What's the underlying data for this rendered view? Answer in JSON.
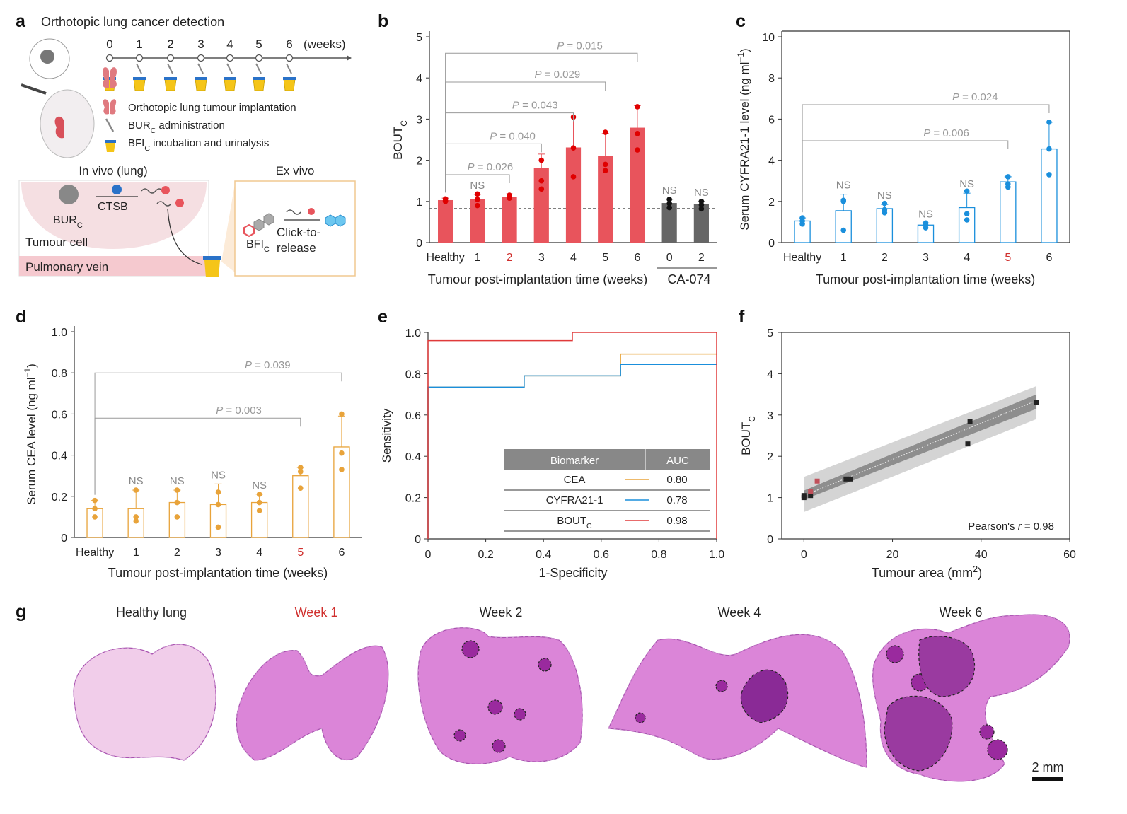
{
  "panel_letters": {
    "a": "a",
    "b": "b",
    "c": "c",
    "d": "d",
    "e": "e",
    "f": "f",
    "g": "g"
  },
  "colors": {
    "bout_red": "#e8545c",
    "ca074_grey": "#666666",
    "cyfra_blue": "#1a8fdc",
    "cea_orange": "#e8a33a",
    "roc_red": "#e03a3a",
    "table_header": "#888888",
    "pvalue_grey": "#999999",
    "highlight_red": "#d0302e"
  },
  "panel_a": {
    "title": "Orthotopic lung cancer detection",
    "weeks": [
      "0",
      "1",
      "2",
      "3",
      "4",
      "5",
      "6"
    ],
    "weeks_unit": "(weeks)",
    "legend": [
      {
        "icon": "lung-icon",
        "text_main": "Orthotopic lung tumour implantation",
        "sub": ""
      },
      {
        "icon": "syringe-icon",
        "text_main": "BUR",
        "sub": "C",
        "text_after": " administration"
      },
      {
        "icon": "urine-cup-icon",
        "text_main": "BFI",
        "sub": "C",
        "text_after": " incubation and urinalysis"
      }
    ],
    "invivo_label": "In vivo (lung)",
    "exvivo_label": "Ex vivo",
    "bur_label": "BUR",
    "bur_sub": "C",
    "ctsb_label": "CTSB",
    "tumour_cell_label": "Tumour cell",
    "vein_label": "Pulmonary vein",
    "bfi_label": "BFI",
    "bfi_sub": "C",
    "click_label_1": "Click-to-",
    "click_label_2": "release"
  },
  "chart_data": [
    {
      "panel": "b",
      "type": "bar",
      "categories": [
        "Healthy",
        "1",
        "2",
        "3",
        "4",
        "5",
        "6",
        "0",
        "2"
      ],
      "highlight_category_index": 2,
      "values": [
        1.02,
        1.05,
        1.1,
        1.8,
        2.3,
        2.1,
        2.78,
        0.95,
        0.92
      ],
      "errors": [
        0.06,
        0.12,
        0.08,
        0.35,
        0.75,
        0.55,
        0.55,
        0.1,
        0.08
      ],
      "points": [
        [
          1.0,
          1.02,
          1.06
        ],
        [
          0.9,
          1.05,
          1.18
        ],
        [
          1.08,
          1.12,
          1.15
        ],
        [
          1.3,
          2.0,
          1.5
        ],
        [
          1.6,
          2.3,
          3.05
        ],
        [
          1.75,
          1.9,
          2.68
        ],
        [
          2.25,
          2.65,
          3.3
        ],
        [
          0.85,
          0.95,
          1.05
        ],
        [
          0.82,
          0.92,
          1.0
        ]
      ],
      "groups": [
        "bout",
        "bout",
        "bout",
        "bout",
        "bout",
        "bout",
        "bout",
        "ca074",
        "ca074"
      ],
      "ylabel": "BOUT",
      "ylabel_sub": "C",
      "ylim": [
        0,
        5
      ],
      "yticks": [
        "0",
        "1",
        "2",
        "3",
        "4",
        "5"
      ],
      "xlabel": "Tumour post-implantation time (weeks)",
      "xlabel2": "CA-074",
      "baseline": 0.83,
      "ns_labels": [
        {
          "index": 1,
          "text": "NS"
        },
        {
          "index": 7,
          "text": "NS"
        },
        {
          "index": 8,
          "text": "NS"
        }
      ],
      "pvalues": [
        {
          "to": 2,
          "y": 1.65,
          "text": "P = 0.026"
        },
        {
          "to": 3,
          "y": 2.4,
          "text": "P = 0.040"
        },
        {
          "to": 4,
          "y": 3.15,
          "text": "P = 0.043"
        },
        {
          "to": 5,
          "y": 3.9,
          "text": "P = 0.029"
        },
        {
          "to": 6,
          "y": 4.6,
          "text": "P = 0.015"
        }
      ]
    },
    {
      "panel": "c",
      "type": "bar",
      "categories": [
        "Healthy",
        "1",
        "2",
        "3",
        "4",
        "5",
        "6"
      ],
      "highlight_category_index": 5,
      "values": [
        1.05,
        1.55,
        1.65,
        0.85,
        1.7,
        2.95,
        4.55
      ],
      "errors": [
        0.15,
        0.8,
        0.2,
        0.1,
        0.7,
        0.25,
        1.3
      ],
      "points": [
        [
          0.9,
          1.05,
          1.2
        ],
        [
          0.6,
          2.0,
          2.05
        ],
        [
          1.45,
          1.6,
          1.9
        ],
        [
          0.72,
          0.85,
          0.95
        ],
        [
          1.1,
          1.4,
          2.5
        ],
        [
          2.7,
          2.85,
          3.2
        ],
        [
          3.3,
          4.55,
          5.85
        ]
      ],
      "ylabel": "Serum CYFRA21-1 level (ng ml",
      "ylabel_sup": "−1",
      "ylabel_end": ")",
      "ylim": [
        0,
        10
      ],
      "yticks": [
        "0",
        "2",
        "4",
        "6",
        "8",
        "10"
      ],
      "xlabel": "Tumour post-implantation time (weeks)",
      "ns_labels": [
        {
          "index": 1,
          "text": "NS"
        },
        {
          "index": 2,
          "text": "NS"
        },
        {
          "index": 3,
          "text": "NS"
        },
        {
          "index": 4,
          "text": "NS"
        }
      ],
      "pvalues": [
        {
          "to": 5,
          "y": 4.95,
          "text": "P = 0.006"
        },
        {
          "to": 6,
          "y": 6.7,
          "text": "P = 0.024"
        }
      ]
    },
    {
      "panel": "d",
      "type": "bar",
      "categories": [
        "Healthy",
        "1",
        "2",
        "3",
        "4",
        "5",
        "6"
      ],
      "highlight_category_index": 5,
      "values": [
        0.14,
        0.14,
        0.17,
        0.16,
        0.17,
        0.3,
        0.44
      ],
      "errors": [
        0.04,
        0.09,
        0.06,
        0.1,
        0.04,
        0.04,
        0.15
      ],
      "points": [
        [
          0.1,
          0.14,
          0.18
        ],
        [
          0.08,
          0.1,
          0.23
        ],
        [
          0.1,
          0.17,
          0.23
        ],
        [
          0.05,
          0.16,
          0.22
        ],
        [
          0.13,
          0.17,
          0.21
        ],
        [
          0.24,
          0.32,
          0.34
        ],
        [
          0.33,
          0.41,
          0.6
        ]
      ],
      "ylabel": "Serum CEA level (ng ml",
      "ylabel_sup": "−1",
      "ylabel_end": ")",
      "ylim": [
        0,
        1.0
      ],
      "yticks": [
        "0",
        "0.2",
        "0.4",
        "0.6",
        "0.8",
        "1.0"
      ],
      "xlabel": "Tumour post-implantation time (weeks)",
      "ns_labels": [
        {
          "index": 1,
          "text": "NS"
        },
        {
          "index": 2,
          "text": "NS"
        },
        {
          "index": 3,
          "text": "NS"
        },
        {
          "index": 4,
          "text": "NS"
        }
      ],
      "pvalues": [
        {
          "to": 5,
          "y": 0.58,
          "text": "P = 0.003"
        },
        {
          "to": 6,
          "y": 0.8,
          "text": "P = 0.039"
        }
      ]
    },
    {
      "panel": "e",
      "type": "line",
      "xlabel": "1-Specificity",
      "ylabel": "Sensitivity",
      "xlim": [
        0,
        1.0
      ],
      "ylim": [
        0,
        1.0
      ],
      "xticks": [
        "0",
        "0.2",
        "0.4",
        "0.6",
        "0.8",
        "1.0"
      ],
      "yticks": [
        "0",
        "0.2",
        "0.4",
        "0.6",
        "0.8",
        "1.0"
      ],
      "series": [
        {
          "name": "CEA",
          "color": "#e8a33a",
          "auc": "0.80",
          "x": [
            0,
            0,
            0.333,
            0.333,
            0.667,
            0.667,
            1.0
          ],
          "y": [
            0,
            0.735,
            0.735,
            0.79,
            0.79,
            0.895,
            0.895
          ]
        },
        {
          "name": "CYFRA21-1",
          "color": "#1a8fdc",
          "auc": "0.78",
          "x": [
            0,
            0,
            0.333,
            0.333,
            0.667,
            0.667,
            1.0
          ],
          "y": [
            0,
            0.735,
            0.735,
            0.79,
            0.79,
            0.845,
            0.845
          ]
        },
        {
          "name": "BOUT",
          "name_sub": "C",
          "color": "#e03a3a",
          "auc": "0.98",
          "x": [
            0,
            0,
            0.5,
            0.5,
            1.0,
            1.0
          ],
          "y": [
            0,
            0.96,
            0.96,
            1.0,
            1.0,
            0
          ]
        }
      ],
      "table_header": [
        "Biomarker",
        "AUC"
      ]
    },
    {
      "panel": "f",
      "type": "scatter",
      "xlabel": "Tumour area (mm",
      "xlabel_sup": "2",
      "xlabel_end": ")",
      "ylabel": "BOUT",
      "ylabel_sub": "C",
      "xlim": [
        -5,
        60
      ],
      "ylim": [
        0,
        5
      ],
      "xticks": [
        "0",
        "20",
        "40",
        "60"
      ],
      "yticks": [
        "0",
        "1",
        "2",
        "3",
        "4",
        "5"
      ],
      "points": [
        {
          "x": 0,
          "y": 1.0,
          "c": "k"
        },
        {
          "x": 0,
          "y": 1.05,
          "c": "k"
        },
        {
          "x": 1.5,
          "y": 1.05,
          "c": "k"
        },
        {
          "x": 1.5,
          "y": 1.15,
          "c": "r"
        },
        {
          "x": 3,
          "y": 1.4,
          "c": "r"
        },
        {
          "x": 9.5,
          "y": 1.45,
          "c": "k"
        },
        {
          "x": 10.5,
          "y": 1.45,
          "c": "k"
        },
        {
          "x": 37,
          "y": 2.3,
          "c": "k"
        },
        {
          "x": 37.5,
          "y": 2.85,
          "c": "k"
        },
        {
          "x": 52.5,
          "y": 3.3,
          "c": "k"
        }
      ],
      "fit": {
        "x0": 0,
        "y0": 1.05,
        "x1": 52.5,
        "y1": 3.35
      },
      "annotation_prefix": "Pearson's ",
      "annotation_r": "r",
      "annotation_value": " = 0.98"
    }
  ],
  "panel_g": {
    "titles": [
      {
        "text": "Healthy lung",
        "highlight": false
      },
      {
        "text": "Week 1",
        "highlight": true
      },
      {
        "text": "Week 2",
        "highlight": false
      },
      {
        "text": "Week 4",
        "highlight": false
      },
      {
        "text": "Week 6",
        "highlight": false
      }
    ],
    "scale_bar": "2 mm"
  }
}
